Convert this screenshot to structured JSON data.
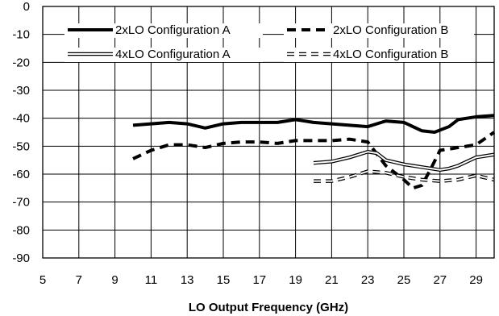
{
  "chart_data": {
    "type": "line",
    "title": "",
    "xlabel": "LO Output Frequency (GHz)",
    "ylabel": "",
    "xlim": [
      5,
      30
    ],
    "ylim": [
      -90,
      0
    ],
    "xticks": [
      5,
      7,
      9,
      11,
      13,
      15,
      17,
      19,
      21,
      23,
      25,
      27,
      29
    ],
    "yticks": [
      0,
      -10,
      -20,
      -30,
      -40,
      -50,
      -60,
      -70,
      -80,
      -90
    ],
    "grid": true,
    "legend_position": "top",
    "series": [
      {
        "name": "2xLO Configuration A",
        "style": "solid-thick",
        "color": "#000000",
        "x": [
          10,
          11,
          12,
          13,
          14,
          15,
          16,
          17,
          18,
          19,
          20,
          21,
          22,
          23,
          24,
          25,
          26,
          26.7,
          27.5,
          28,
          29,
          30
        ],
        "y": [
          -42.5,
          -42,
          -41.5,
          -42,
          -43.5,
          -42,
          -41.5,
          -41.5,
          -41.5,
          -40.5,
          -41.5,
          -42,
          -42.5,
          -43,
          -41,
          -41.5,
          -44.5,
          -45,
          -43,
          -40.5,
          -39.5,
          -39
        ]
      },
      {
        "name": "2xLO Configuration B",
        "style": "dashed-thick",
        "color": "#000000",
        "x": [
          10,
          11,
          12,
          13,
          14,
          15,
          16,
          17,
          18,
          19,
          20,
          21,
          22,
          23,
          24,
          25,
          25.5,
          26,
          26.5,
          27,
          28,
          29,
          30
        ],
        "y": [
          -54.5,
          -51.5,
          -49.5,
          -49.5,
          -50.5,
          -49,
          -48.5,
          -48.5,
          -49,
          -48,
          -48,
          -48,
          -47.5,
          -48.5,
          -57,
          -62,
          -65,
          -64,
          -58,
          -51.5,
          -50.5,
          -49.5,
          -45
        ]
      },
      {
        "name": "4xLO Configuration A",
        "style": "double-line",
        "color": "#000000",
        "x": [
          20,
          21,
          22,
          23,
          23.5,
          24,
          25,
          26,
          27,
          27.5,
          28,
          29,
          30
        ],
        "y": [
          -56,
          -55.5,
          -54,
          -52,
          -52.5,
          -55,
          -56.5,
          -57.5,
          -58.5,
          -58,
          -57,
          -54,
          -53
        ]
      },
      {
        "name": "4xLO Configuration B",
        "style": "double-dashed",
        "color": "#000000",
        "x": [
          20,
          21,
          22,
          23,
          24,
          25,
          26,
          27,
          28,
          29,
          30
        ],
        "y": [
          -62.5,
          -62.5,
          -61,
          -59,
          -59.5,
          -61,
          -62,
          -62.5,
          -62,
          -60.5,
          -62
        ]
      }
    ]
  }
}
